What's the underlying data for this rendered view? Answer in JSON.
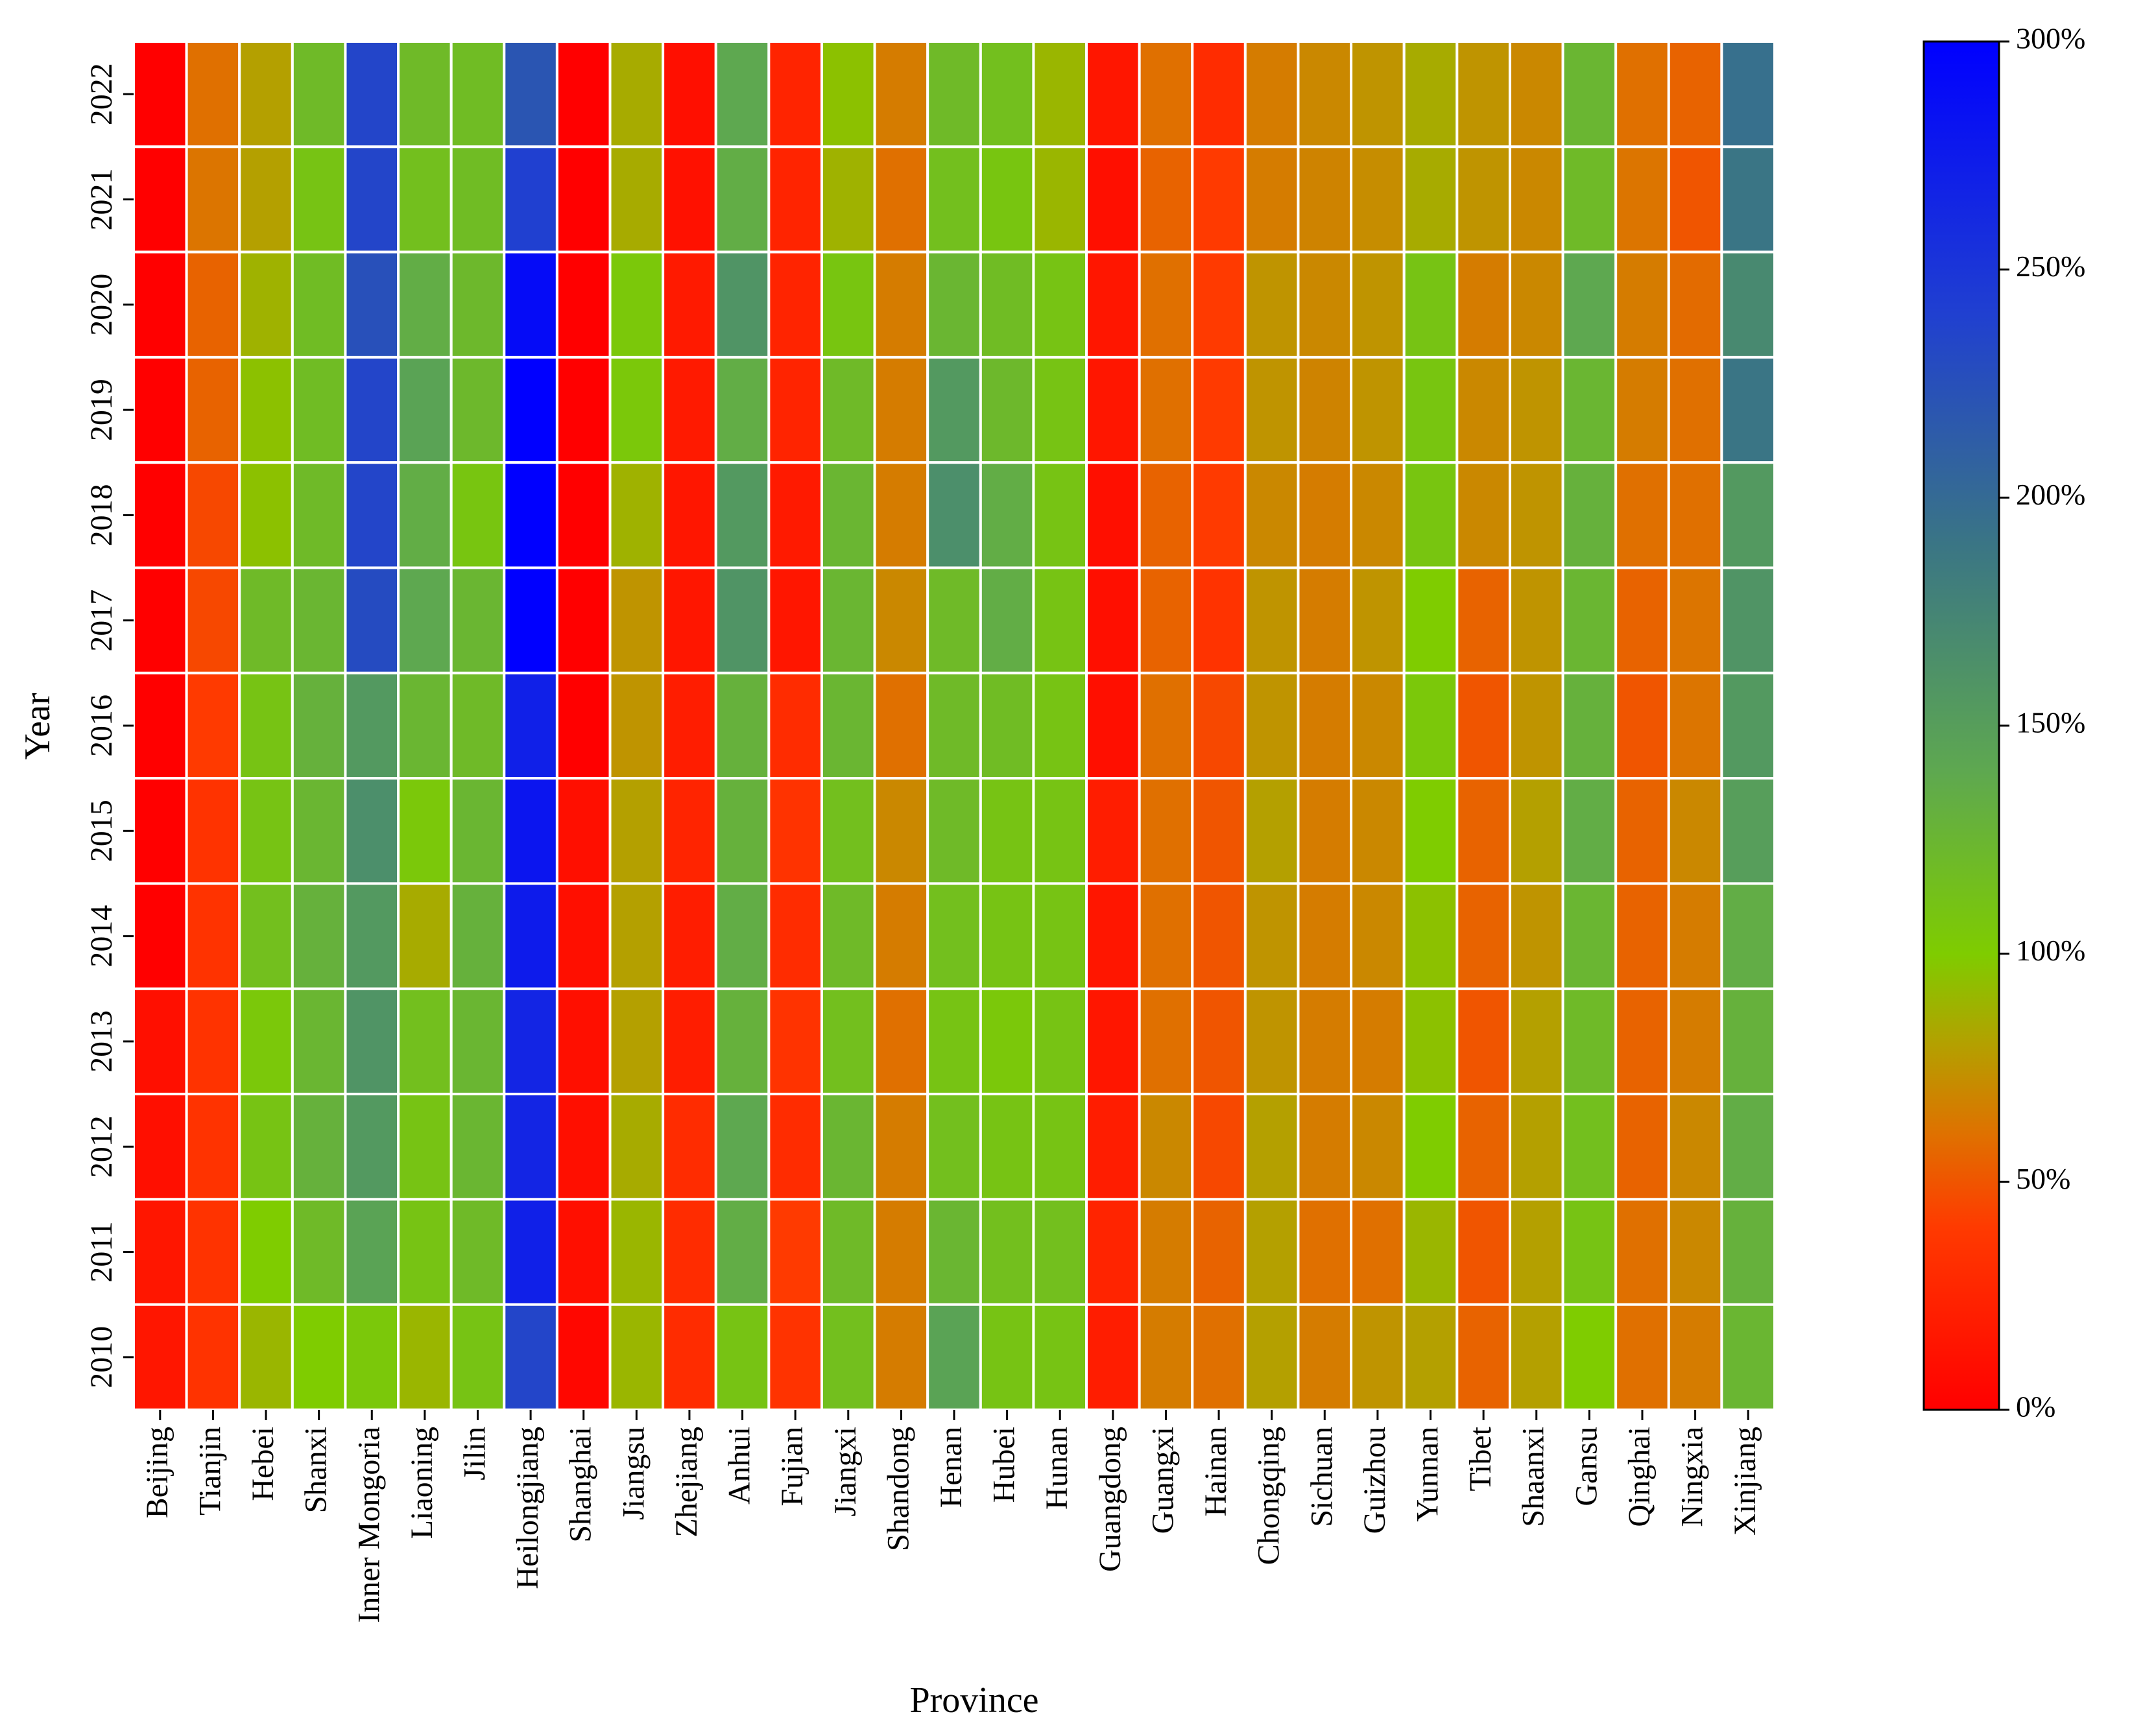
{
  "chart_data": {
    "type": "heatmap",
    "title": "",
    "xlabel": "Province",
    "ylabel": "Year",
    "x_categories": [
      "Beijing",
      "Tianjin",
      "Hebei",
      "Shanxi",
      "Inner Mongoria",
      "Liaoning",
      "Jilin",
      "Heilongjiang",
      "Shanghai",
      "Jiangsu",
      "Zhejiang",
      "Anhui",
      "Fujian",
      "Jiangxi",
      "Shandong",
      "Henan",
      "Hubei",
      "Hunan",
      "Guangdong",
      "Guangxi",
      "Hainan",
      "Chongqing",
      "Sichuan",
      "Guizhou",
      "Yunnan",
      "Tibet",
      "Shaanxi",
      "Gansu",
      "Qinghai",
      "Ningxia",
      "Xinjiang"
    ],
    "y_categories": [
      "2022",
      "2021",
      "2020",
      "2019",
      "2018",
      "2017",
      "2016",
      "2015",
      "2014",
      "2013",
      "2012",
      "2011",
      "2010"
    ],
    "value_range": [
      0,
      300
    ],
    "value_unit": "%",
    "colorbar": {
      "ticks": [
        0,
        50,
        100,
        150,
        200,
        250,
        300
      ],
      "tick_labels": [
        "0%",
        "50%",
        "100%",
        "150%",
        "200%",
        "250%",
        "300%"
      ],
      "color_stops": [
        {
          "value": 0,
          "color": "#ff0000"
        },
        {
          "value": 40,
          "color": "#ff3a00"
        },
        {
          "value": 60,
          "color": "#e07000"
        },
        {
          "value": 80,
          "color": "#b4a000"
        },
        {
          "value": 100,
          "color": "#7fcc00"
        },
        {
          "value": 140,
          "color": "#5ea850"
        },
        {
          "value": 190,
          "color": "#3a7585"
        },
        {
          "value": 240,
          "color": "#2040d0"
        },
        {
          "value": 300,
          "color": "#0000ff"
        }
      ]
    },
    "values": [
      [
        0,
        60,
        80,
        120,
        235,
        120,
        118,
        220,
        0,
        85,
        10,
        140,
        25,
        95,
        65,
        120,
        115,
        90,
        15,
        60,
        30,
        65,
        70,
        75,
        85,
        75,
        70,
        125,
        60,
        55,
        195
      ],
      [
        0,
        62,
        80,
        110,
        235,
        115,
        118,
        240,
        0,
        85,
        12,
        135,
        25,
        88,
        60,
        115,
        108,
        90,
        10,
        55,
        40,
        65,
        68,
        72,
        85,
        75,
        70,
        120,
        62,
        50,
        190
      ],
      [
        0,
        55,
        88,
        118,
        225,
        135,
        122,
        290,
        0,
        105,
        18,
        160,
        25,
        108,
        65,
        125,
        118,
        110,
        15,
        60,
        40,
        75,
        70,
        75,
        110,
        65,
        70,
        140,
        65,
        58,
        170
      ],
      [
        0,
        55,
        95,
        118,
        235,
        145,
        122,
        300,
        0,
        105,
        18,
        135,
        25,
        120,
        65,
        155,
        122,
        110,
        15,
        60,
        40,
        75,
        68,
        75,
        108,
        70,
        75,
        125,
        65,
        60,
        190
      ],
      [
        0,
        45,
        95,
        120,
        235,
        135,
        108,
        300,
        0,
        88,
        15,
        155,
        18,
        125,
        65,
        165,
        135,
        110,
        10,
        55,
        40,
        70,
        65,
        70,
        108,
        70,
        75,
        130,
        60,
        60,
        155
      ],
      [
        0,
        45,
        120,
        125,
        230,
        140,
        125,
        300,
        0,
        75,
        15,
        160,
        15,
        125,
        70,
        120,
        135,
        110,
        10,
        55,
        35,
        75,
        65,
        75,
        100,
        55,
        75,
        125,
        55,
        62,
        160
      ],
      [
        0,
        40,
        110,
        130,
        155,
        125,
        120,
        270,
        0,
        75,
        20,
        130,
        30,
        125,
        60,
        120,
        118,
        110,
        10,
        60,
        45,
        75,
        65,
        70,
        105,
        50,
        75,
        130,
        50,
        62,
        155
      ],
      [
        0,
        35,
        110,
        125,
        165,
        105,
        125,
        280,
        10,
        80,
        25,
        130,
        35,
        115,
        70,
        120,
        110,
        110,
        20,
        60,
        50,
        80,
        65,
        70,
        100,
        55,
        80,
        135,
        55,
        70,
        150
      ],
      [
        0,
        35,
        115,
        130,
        155,
        85,
        130,
        275,
        10,
        80,
        20,
        135,
        30,
        120,
        65,
        115,
        110,
        110,
        15,
        60,
        50,
        75,
        65,
        70,
        95,
        55,
        75,
        125,
        55,
        65,
        135
      ],
      [
        10,
        35,
        105,
        125,
        160,
        115,
        125,
        265,
        10,
        80,
        20,
        130,
        35,
        115,
        60,
        110,
        105,
        110,
        15,
        60,
        50,
        75,
        65,
        65,
        95,
        50,
        80,
        120,
        55,
        65,
        130
      ],
      [
        10,
        35,
        110,
        130,
        155,
        110,
        125,
        265,
        10,
        85,
        30,
        140,
        30,
        125,
        65,
        115,
        110,
        110,
        20,
        70,
        45,
        80,
        65,
        70,
        100,
        55,
        80,
        115,
        55,
        70,
        135
      ],
      [
        15,
        35,
        100,
        120,
        145,
        110,
        120,
        270,
        10,
        90,
        30,
        135,
        40,
        120,
        65,
        125,
        115,
        115,
        25,
        65,
        55,
        80,
        60,
        60,
        90,
        50,
        80,
        110,
        60,
        70,
        130
      ],
      [
        15,
        35,
        90,
        100,
        105,
        90,
        110,
        235,
        5,
        90,
        30,
        110,
        35,
        115,
        65,
        145,
        110,
        110,
        20,
        65,
        60,
        80,
        65,
        75,
        80,
        55,
        80,
        100,
        60,
        65,
        125
      ]
    ]
  }
}
